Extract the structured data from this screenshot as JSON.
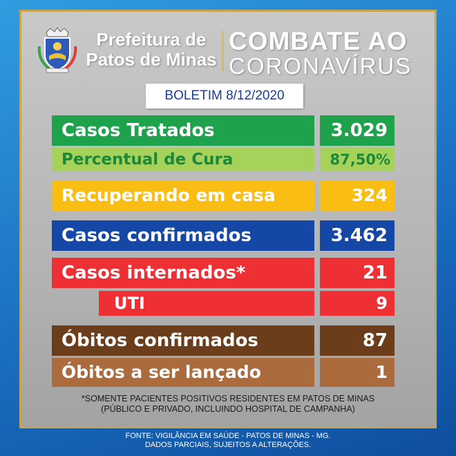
{
  "header": {
    "city_line1": "Prefeitura de",
    "city_line2": "Patos de Minas",
    "campaign_line1": "COMBATE AO",
    "campaign_line2": "CORONAVÍRUS"
  },
  "bulletin": "BOLETIM 8/12/2020",
  "rows": {
    "tratados": {
      "label": "Casos Tratados",
      "value": "3.029"
    },
    "cura": {
      "label": "Percentual de Cura",
      "value": "87,50%"
    },
    "recuperando": {
      "label": "Recuperando em casa",
      "value": "324"
    },
    "confirmados": {
      "label": "Casos confirmados",
      "value": "3.462"
    },
    "internados": {
      "label": "Casos internados*",
      "value": "21"
    },
    "uti": {
      "label": "UTI",
      "value": "9"
    },
    "obitos": {
      "label": "Óbitos confirmados",
      "value": "87"
    },
    "lancar": {
      "label": "Óbitos a ser lançado",
      "value": "1"
    }
  },
  "colors": {
    "tratados_bg": "#1ea24b",
    "tratados_fg": "#ffffff",
    "cura_bg": "#a6d15a",
    "cura_fg": "#1a8a3a",
    "recuperando_bg": "#f9bd14",
    "recuperando_fg": "#ffffff",
    "confirmados_bg": "#1548a6",
    "confirmados_fg": "#ffffff",
    "internados_bg": "#ee2f33",
    "internados_fg": "#ffffff",
    "obitos_bg": "#6b3d1a",
    "obitos_fg": "#ffffff",
    "lancar_bg": "#ac6b3c",
    "lancar_fg": "#ffffff"
  },
  "note": {
    "line1": "*SOMENTE PACIENTES POSITIVOS RESIDENTES EM PATOS DE MINAS",
    "line2": "(PÚBLICO E PRIVADO, INCLUINDO HOSPITAL DE CAMPANHA)"
  },
  "footer": {
    "line1": "FONTE: VIGILÂNCIA EM SAÚDE - PATOS DE MINAS - MG.",
    "line2": "DADOS PARCIAIS, SUJEITOS A ALTERAÇÕES."
  }
}
